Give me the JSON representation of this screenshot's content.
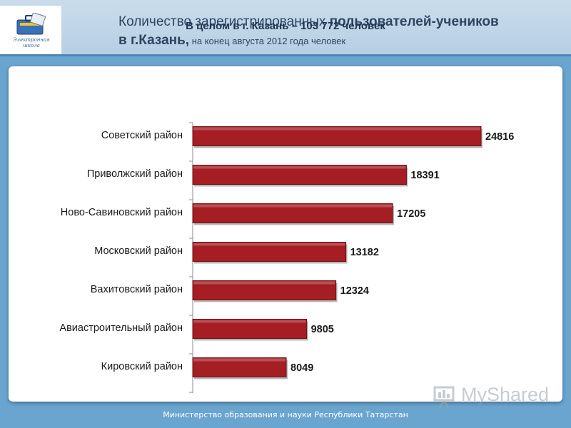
{
  "header": {
    "logo_text": "Электронная школа",
    "title_part1": "Количество зарегистрированных ",
    "title_bold": "пользователей-учеников",
    "title_line2_bold": "в г.Казань,",
    "title_line2_rest": " на конец августа 2012 года человек"
  },
  "chart_data": {
    "type": "bar",
    "orientation": "horizontal",
    "title": "В целом в г. Казань – 103 772 человек",
    "categories": [
      "Советский район",
      "Приволжский район",
      "Ново-Савиновский район",
      "Московский район",
      "Вахитовский район",
      "Авиастроительный район",
      "Кировский район"
    ],
    "values": [
      24816,
      18391,
      17205,
      13182,
      12324,
      9805,
      8049
    ],
    "xlim": [
      0,
      24816
    ],
    "bar_color": "#a51e24",
    "grid": false,
    "legend": "none"
  },
  "footer": {
    "text": "Министерство образования и науки Республики Татарстан"
  },
  "watermark": {
    "text": "MyShared"
  }
}
